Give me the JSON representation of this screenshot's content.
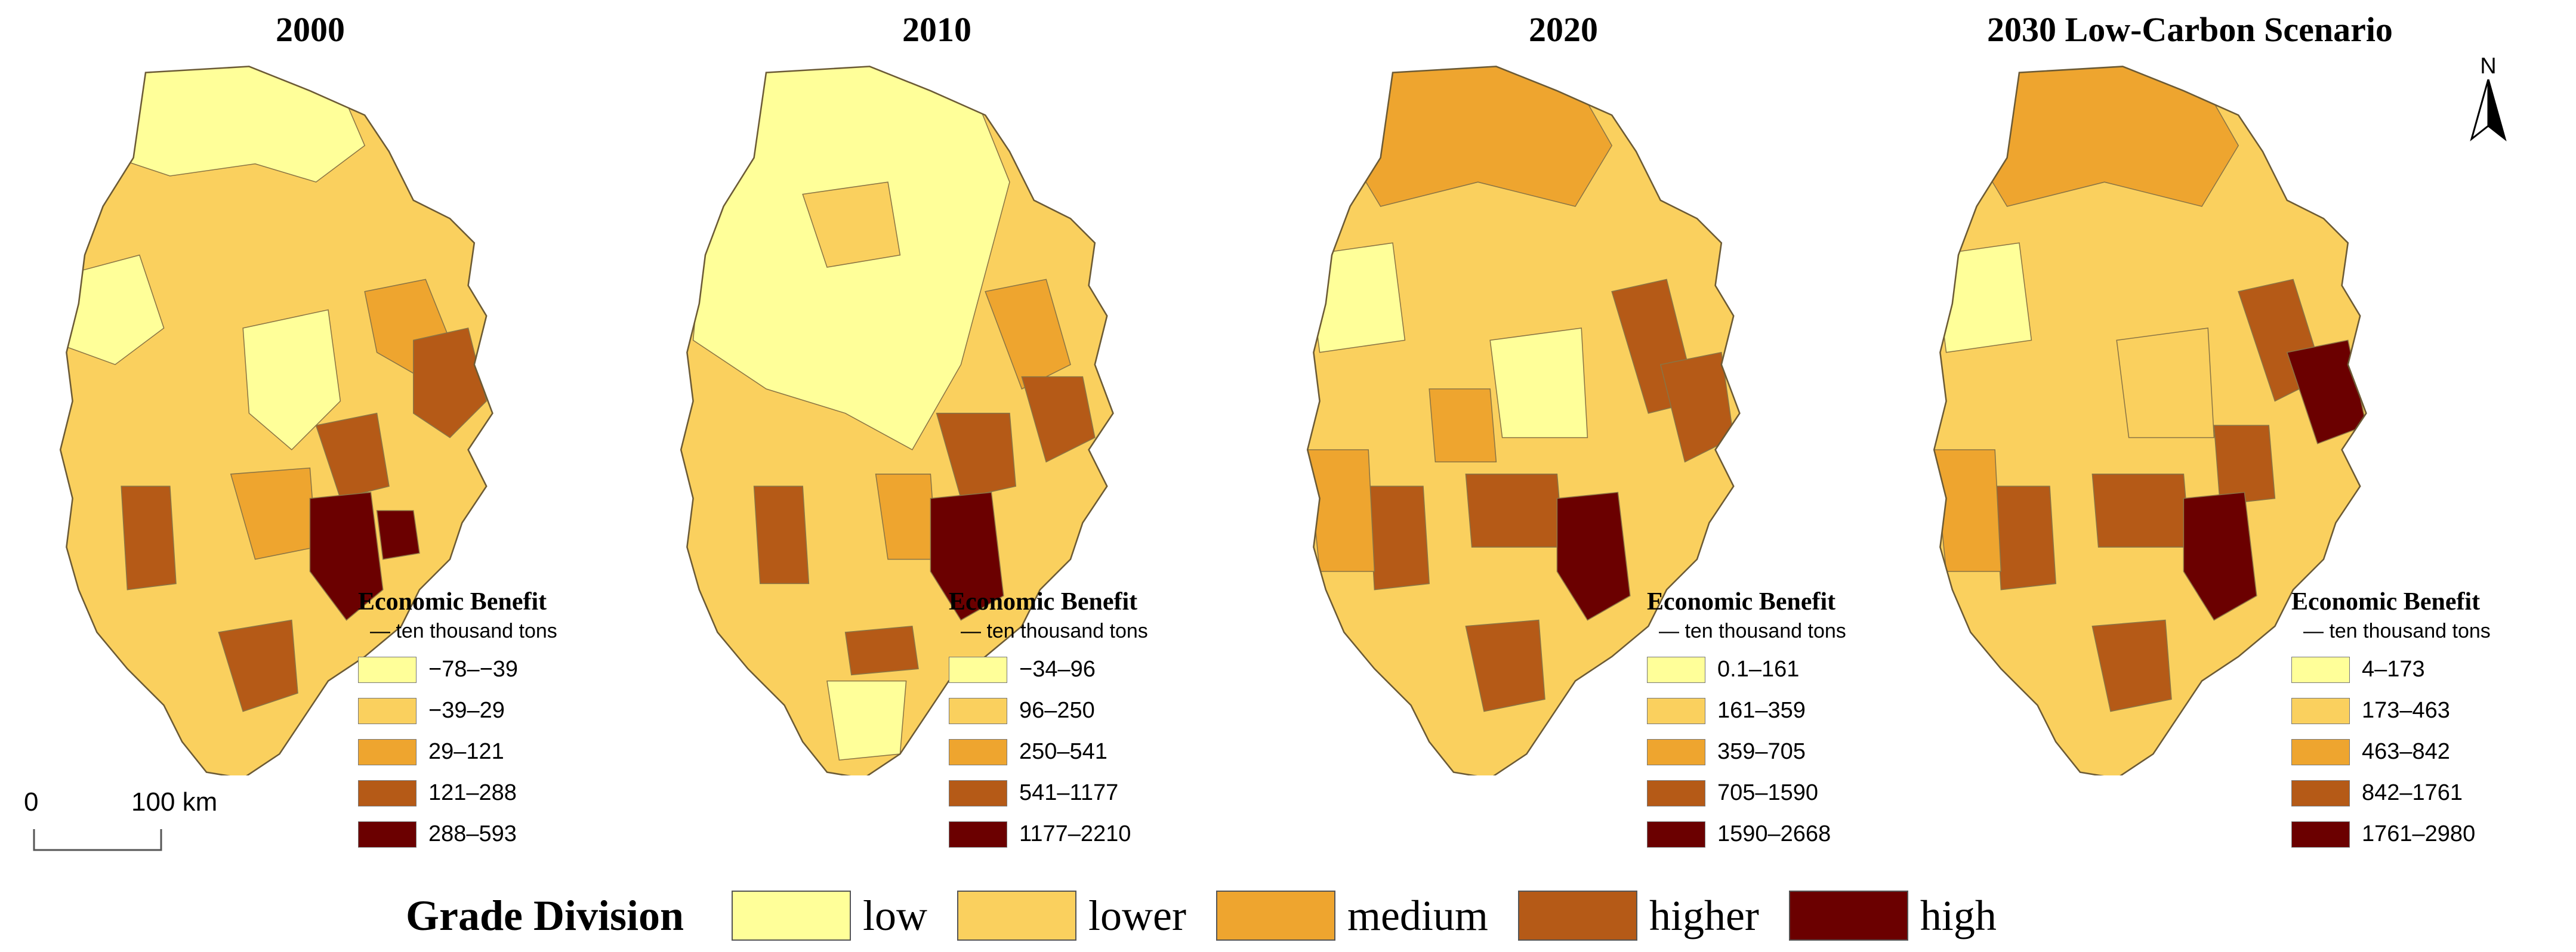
{
  "colors": {
    "low": "#FFFF99",
    "lower": "#FAD05E",
    "medium": "#EEA52F",
    "higher": "#B55A17",
    "high": "#6B0000",
    "border": "#8a7444"
  },
  "panels": [
    {
      "title": "2000",
      "legend_title": "Economic Benefit",
      "legend_unit": "— ten thousand tons",
      "classes": [
        "−78–−39",
        "−39–29",
        "29–121",
        "121–288",
        "288–593"
      ]
    },
    {
      "title": "2010",
      "legend_title": "Economic Benefit",
      "legend_unit": "— ten thousand tons",
      "classes": [
        "−34–96",
        "96–250",
        "250–541",
        "541–1177",
        "1177–2210"
      ]
    },
    {
      "title": "2020",
      "legend_title": "Economic Benefit",
      "legend_unit": "— ten thousand tons",
      "classes": [
        "0.1–161",
        "161–359",
        "359–705",
        "705–1590",
        "1590–2668"
      ]
    },
    {
      "title": "2030 Low-Carbon Scenario",
      "legend_title": "Economic Benefit",
      "legend_unit": "— ten thousand tons",
      "classes": [
        "4–173",
        "173–463",
        "463–842",
        "842–1761",
        "1761–2980"
      ]
    }
  ],
  "scale_bar": {
    "start_label": "0",
    "end_label": "100 km"
  },
  "north_arrow": {
    "label": "N"
  },
  "grade_division": {
    "title": "Grade Division",
    "levels": [
      "low",
      "lower",
      "medium",
      "higher",
      "high"
    ]
  }
}
